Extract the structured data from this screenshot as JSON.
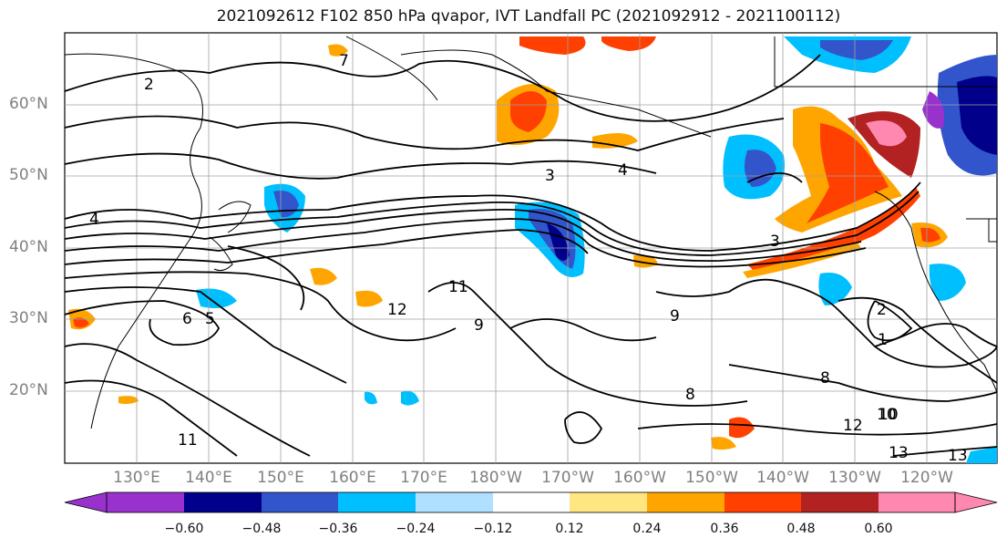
{
  "title": "2021092612 F102 850 hPa qvapor, IVT Landfall PC (2021092912 - 2021100112)",
  "lat_labels": [
    "60°N",
    "50°N",
    "40°N",
    "30°N",
    "20°N"
  ],
  "lon_labels": [
    "130°E",
    "140°E",
    "150°E",
    "160°E",
    "170°E",
    "180°W",
    "170°W",
    "160°W",
    "150°W",
    "140°W",
    "130°W",
    "120°W"
  ],
  "colorbar": {
    "ticks": [
      "−0.60",
      "−0.48",
      "−0.36",
      "−0.24",
      "−0.12",
      "0.12",
      "0.24",
      "0.36",
      "0.48",
      "0.60"
    ],
    "colors": [
      "#9932cc",
      "#00008b",
      "#3355cc",
      "#00bfff",
      "#b0e0ff",
      "#ffffff",
      "#ffe680",
      "#ffa500",
      "#ff4000",
      "#b22222",
      "#ff88b0"
    ]
  },
  "contour_labels": [
    "2",
    "3",
    "4",
    "7",
    "8",
    "9",
    "10",
    "11",
    "12",
    "13",
    "1",
    "6",
    "5",
    "4",
    "3",
    "2",
    "8",
    "9",
    "12",
    "13",
    "11",
    "10"
  ]
}
